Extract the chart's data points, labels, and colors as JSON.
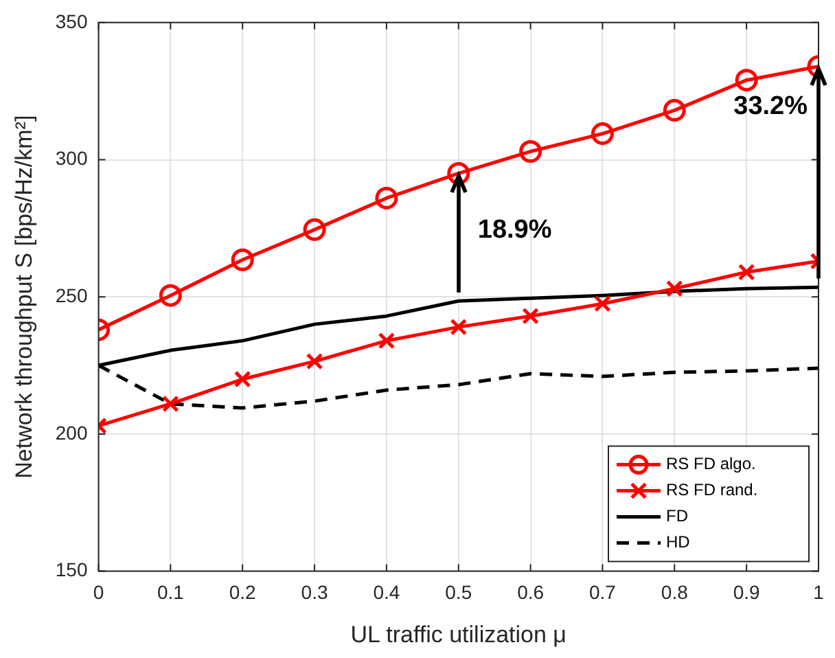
{
  "chart_data": {
    "type": "line",
    "xlabel": "UL traffic utilization μ",
    "ylabel": "Network throughput S [bps/Hz/km²]",
    "x": [
      0,
      0.1,
      0.2,
      0.3,
      0.4,
      0.5,
      0.6,
      0.7,
      0.8,
      0.9,
      1
    ],
    "series": [
      {
        "name": "RS FD algo.",
        "color": "#ff0000",
        "marker": "circle",
        "line_style": "solid",
        "values": [
          238,
          250.5,
          263.5,
          274.5,
          286,
          295,
          303,
          309.5,
          318,
          329,
          334
        ]
      },
      {
        "name": "RS FD rand.",
        "color": "#ff0000",
        "marker": "cross",
        "line_style": "solid",
        "values": [
          203,
          211,
          220,
          226.5,
          234,
          239,
          243,
          247.5,
          253,
          259,
          263
        ]
      },
      {
        "name": "FD",
        "color": "#000000",
        "marker": "none",
        "line_style": "solid",
        "values": [
          225,
          230.5,
          234,
          240,
          243,
          248.5,
          249.5,
          250.5,
          252,
          253,
          253.5
        ]
      },
      {
        "name": "HD",
        "color": "#000000",
        "marker": "none",
        "line_style": "dashed",
        "values": [
          225,
          211,
          209.5,
          212,
          216,
          218,
          222,
          221,
          222.5,
          223,
          224
        ]
      }
    ],
    "xlim": [
      0,
      1
    ],
    "xticks": [
      0,
      0.1,
      0.2,
      0.3,
      0.4,
      0.5,
      0.6,
      0.7,
      0.8,
      0.9,
      1
    ],
    "ylim": [
      150,
      350
    ],
    "yticks": [
      150,
      200,
      250,
      300,
      350
    ],
    "grid": true,
    "legend": "bottom right",
    "annotations": [
      "18.9%",
      "33.2%"
    ]
  }
}
